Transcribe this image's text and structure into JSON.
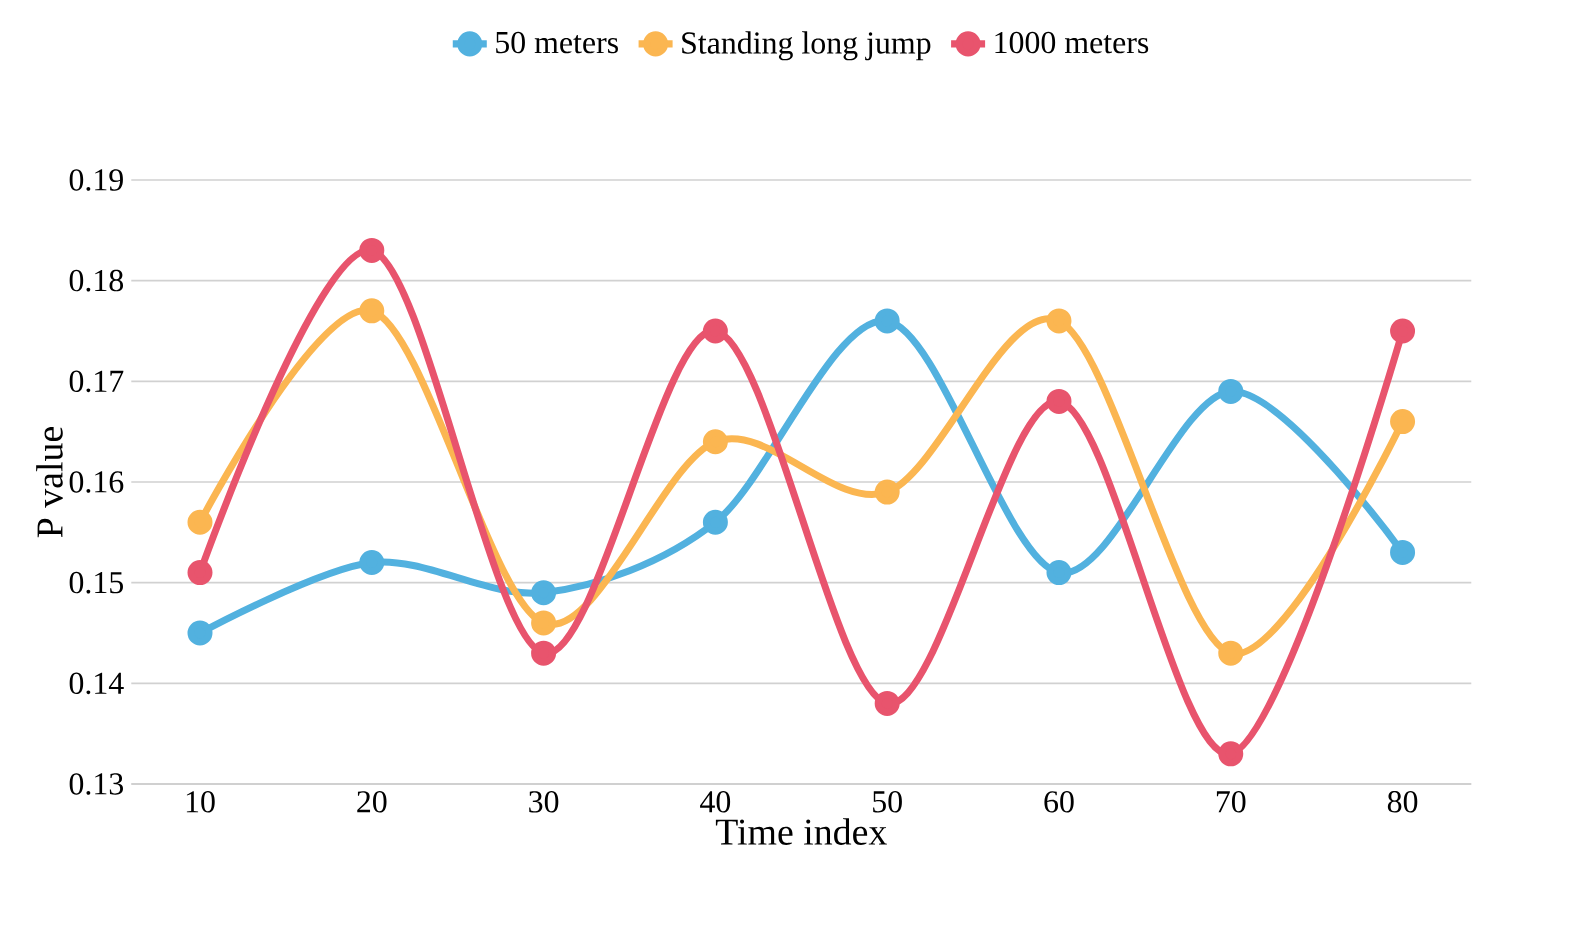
{
  "chart_data": {
    "type": "line",
    "xlabel": "Time index",
    "ylabel": "P value",
    "categories": [
      "10",
      "20",
      "30",
      "40",
      "50",
      "60",
      "70",
      "80"
    ],
    "ylim": [
      0.13,
      0.19
    ],
    "yticks": [
      0.13,
      0.14,
      0.15,
      0.16,
      0.17,
      0.18,
      0.19
    ],
    "grid": "y",
    "legend": "top",
    "marker": "circle",
    "line_style": "solid",
    "series": [
      {
        "name": "50 meters",
        "color": "#52b1df",
        "values": [
          0.145,
          0.152,
          0.149,
          0.156,
          0.176,
          0.151,
          0.169,
          0.153
        ]
      },
      {
        "name": "Standing long jump",
        "color": "#fbb651",
        "values": [
          0.156,
          0.177,
          0.146,
          0.164,
          0.159,
          0.176,
          0.143,
          0.166
        ]
      },
      {
        "name": "1000 meters",
        "color": "#e8546d",
        "values": [
          0.151,
          0.183,
          0.143,
          0.175,
          0.138,
          0.168,
          0.133,
          0.175
        ]
      }
    ]
  }
}
